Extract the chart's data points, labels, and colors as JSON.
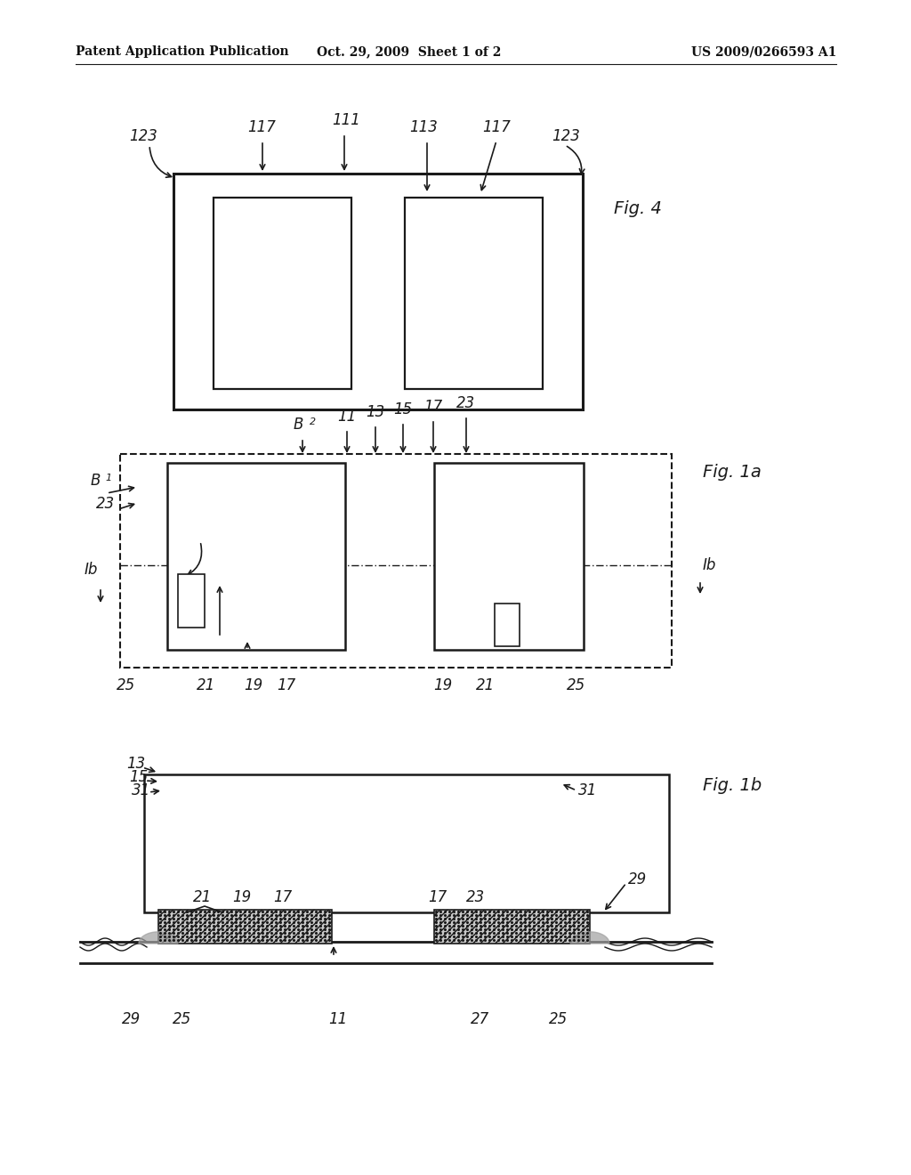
{
  "header_left": "Patent Application Publication",
  "header_mid": "Oct. 29, 2009  Sheet 1 of 2",
  "header_right": "US 2009/0266593 A1",
  "bg_color": "#ffffff",
  "line_color": "#1a1a1a"
}
